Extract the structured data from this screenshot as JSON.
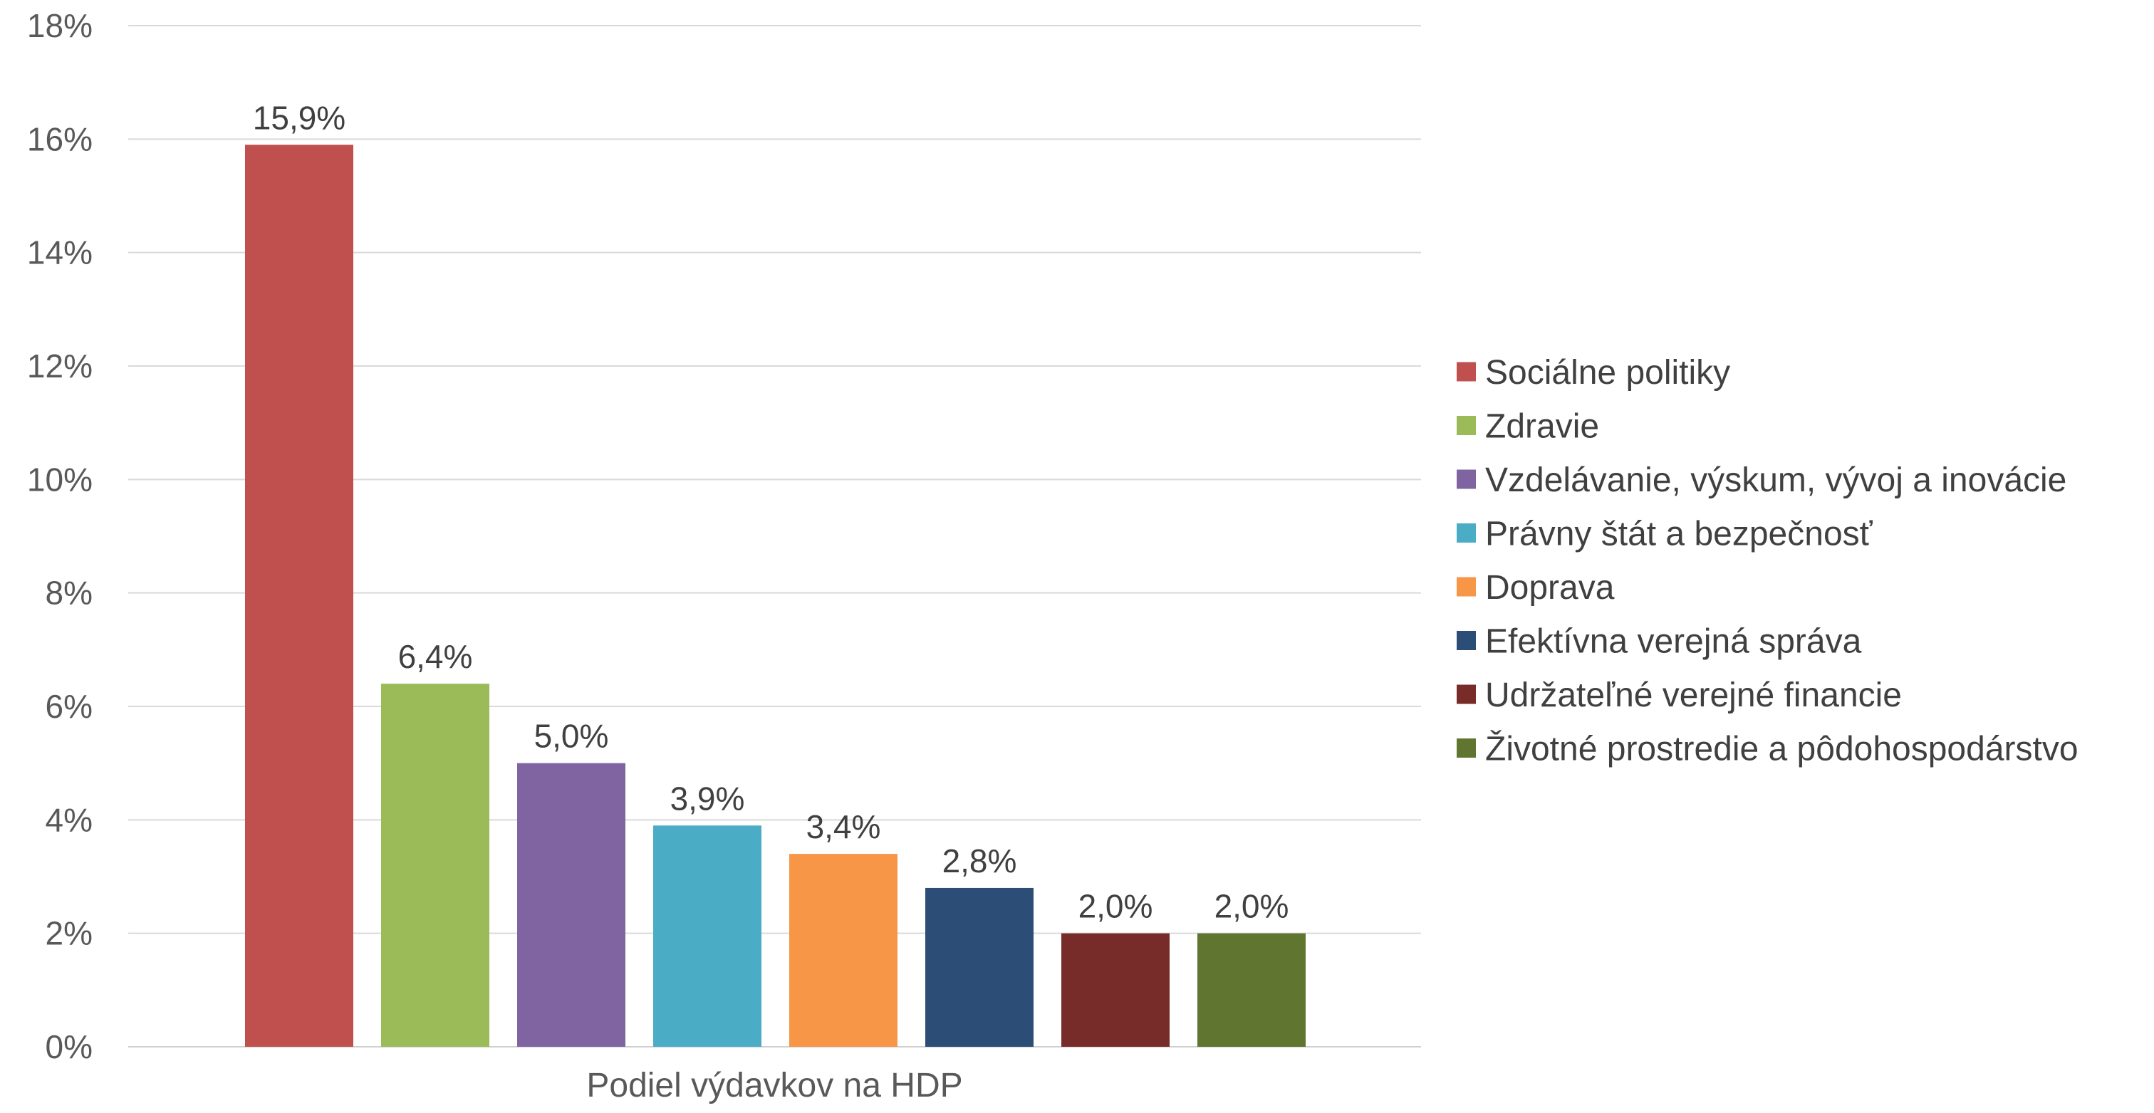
{
  "chart_data": {
    "type": "bar",
    "xlabel": "Podiel výdavkov na HDP",
    "ylim": [
      0,
      18
    ],
    "yticks": [
      "0%",
      "2%",
      "4%",
      "6%",
      "8%",
      "10%",
      "12%",
      "14%",
      "16%",
      "18%"
    ],
    "ytick_values": [
      0,
      2,
      4,
      6,
      8,
      10,
      12,
      14,
      16,
      18
    ],
    "grid": true,
    "legend_position": "right",
    "series": [
      {
        "name": "Sociálne politiky",
        "value": 15.9,
        "label": "15,9%",
        "color": "#C0504D"
      },
      {
        "name": "Zdravie",
        "value": 6.4,
        "label": "6,4%",
        "color": "#9BBB59"
      },
      {
        "name": "Vzdelávanie, výskum, vývoj a inovácie",
        "value": 5.0,
        "label": "5,0%",
        "color": "#8064A2"
      },
      {
        "name": "Právny štát a bezpečnosť",
        "value": 3.9,
        "label": "3,9%",
        "color": "#4BACC6"
      },
      {
        "name": "Doprava",
        "value": 3.4,
        "label": "3,4%",
        "color": "#F79646"
      },
      {
        "name": "Efektívna verejná správa",
        "value": 2.8,
        "label": "2,8%",
        "color": "#2C4D75"
      },
      {
        "name": "Udržateľné verejné financie",
        "value": 2.0,
        "label": "2,0%",
        "color": "#772C2A"
      },
      {
        "name": "Životné prostredie a pôdohospodárstvo",
        "value": 2.0,
        "label": "2,0%",
        "color": "#5F7530"
      }
    ]
  }
}
